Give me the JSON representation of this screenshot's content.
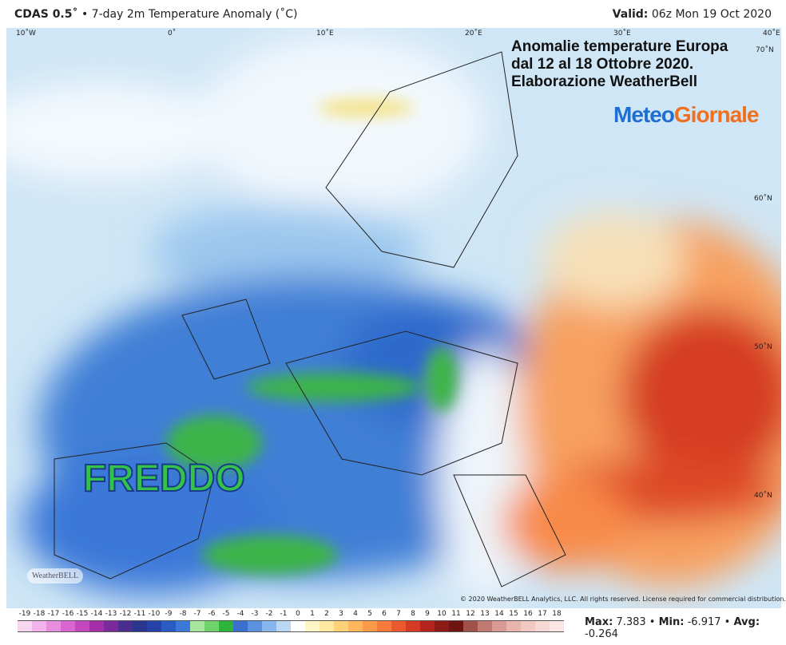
{
  "header": {
    "model": "CDAS 0.5˚",
    "product": "• 7-day 2m Temperature Anomaly (˚C)",
    "valid_label": "Valid:",
    "valid_time": "06z Mon 19 Oct 2020"
  },
  "overlay": {
    "lines": [
      "Anomalie temperature Europa",
      "dal 12 al 18 Ottobre 2020.",
      "Elaborazione WeatherBell"
    ],
    "logo_a": "Meteo",
    "logo_b": "Giornale",
    "freddo": "FREDDO",
    "watermark": "WeatherBELL",
    "copyright": "© 2020 WeatherBELL Analytics, LLC. All rights reserved. License required for commercial distribution."
  },
  "grid_labels": {
    "lon": [
      "10˚W",
      "0˚",
      "10˚E",
      "20˚E",
      "30˚E",
      "40˚E"
    ],
    "lat": [
      "70˚N",
      "60˚N",
      "50˚N",
      "40˚N"
    ]
  },
  "colorbar": {
    "ticks": [
      -19,
      -18,
      -17,
      -16,
      -15,
      -14,
      -13,
      -12,
      -11,
      -10,
      -9,
      -8,
      -7,
      -6,
      -5,
      -4,
      -3,
      -2,
      -1,
      0,
      1,
      2,
      3,
      4,
      5,
      6,
      7,
      8,
      9,
      10,
      11,
      12,
      13,
      14,
      15,
      16,
      17,
      18
    ],
    "colors": [
      "#f7d6f2",
      "#f2b4ea",
      "#e88ede",
      "#d966cf",
      "#c447bf",
      "#a52fa8",
      "#7a2a9a",
      "#4a2d8f",
      "#2a3590",
      "#2442a8",
      "#2a5cc4",
      "#3b78d8",
      "#a8e6a0",
      "#6fd26a",
      "#2fb43a",
      "#3a6fd0",
      "#5a92e0",
      "#86b6ec",
      "#b8d8f4",
      "#ffffff",
      "#fff6c8",
      "#ffe8a0",
      "#ffd27a",
      "#ffb65c",
      "#ff9a48",
      "#f97a3a",
      "#ea5a2e",
      "#d43a24",
      "#b4241c",
      "#8e1a16",
      "#6e1412",
      "#a0524a",
      "#c07a72",
      "#d89a92",
      "#e8b4ac",
      "#f2c8c2",
      "#f8d8d4",
      "#fbe6e3"
    ]
  },
  "stats": {
    "max_label": "Max:",
    "max": 7.383,
    "min_label": "Min:",
    "min": -6.917,
    "avg_label": "Avg:",
    "avg": -0.264
  }
}
